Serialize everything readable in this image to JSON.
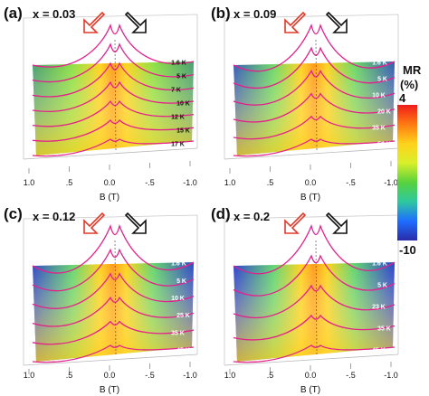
{
  "colors": {
    "scale_stops": [
      "#ee1c1c",
      "#ff7a12",
      "#ffd21c",
      "#d8ef2a",
      "#58d23c",
      "#2ec8a0",
      "#1e6eff",
      "#2a2aa8"
    ],
    "temp_line": "#e5208c",
    "upsweep_arrow": "#e03a2a",
    "downsweep_arrow": "#111111",
    "surface_low": "#2a3ccf"
  },
  "colorbar": {
    "title_line1": "MR",
    "title_line2": "(%)",
    "max_label": "4",
    "min_label": "-10"
  },
  "chart_data": [
    {
      "type": "heatmap",
      "panel_label": "(a)",
      "composition": "x = 0.03",
      "xlabel": "B (T)",
      "x_ticks": [
        "1.0",
        ".5",
        "0.0",
        "-.5",
        "-1.0"
      ],
      "xlim": [
        1.0,
        -1.0
      ],
      "temperature_labels": [
        "1.6 K",
        "5 K",
        "7 K",
        "10 K",
        "12 K",
        "15 K",
        "17 K"
      ],
      "minimum_mr_level": 0.35
    },
    {
      "type": "heatmap",
      "panel_label": "(b)",
      "composition": "x = 0.09",
      "xlabel": "B (T)",
      "x_ticks": [
        "1.0",
        ".5",
        "0.0",
        "-.5",
        "-1.0"
      ],
      "xlim": [
        1.0,
        -1.0
      ],
      "temperature_labels": [
        "1.6 K",
        "5 K",
        "10 K",
        "20 K",
        "35 K",
        "50 K"
      ],
      "minimum_mr_level": 0.8
    },
    {
      "type": "heatmap",
      "panel_label": "(c)",
      "composition": "x = 0.12",
      "xlabel": "B (T)",
      "x_ticks": [
        "1.0",
        ".5",
        "0.0",
        "-.5",
        "-1.0"
      ],
      "xlim": [
        1.0,
        -1.0
      ],
      "temperature_labels": [
        "1.6 K",
        "5 K",
        "10 K",
        "25 K",
        "35 K",
        "45 K"
      ],
      "minimum_mr_level": 0.92
    },
    {
      "type": "heatmap",
      "panel_label": "(d)",
      "composition": "x = 0.2",
      "xlabel": "B (T)",
      "x_ticks": [
        "1.0",
        ".5",
        "0.0",
        "-.5",
        "-1.0"
      ],
      "xlim": [
        1.0,
        -1.0
      ],
      "temperature_labels": [
        "1.6 K",
        "5 K",
        "23 K",
        "35 K",
        "45 K"
      ],
      "minimum_mr_level": 0.98
    }
  ]
}
